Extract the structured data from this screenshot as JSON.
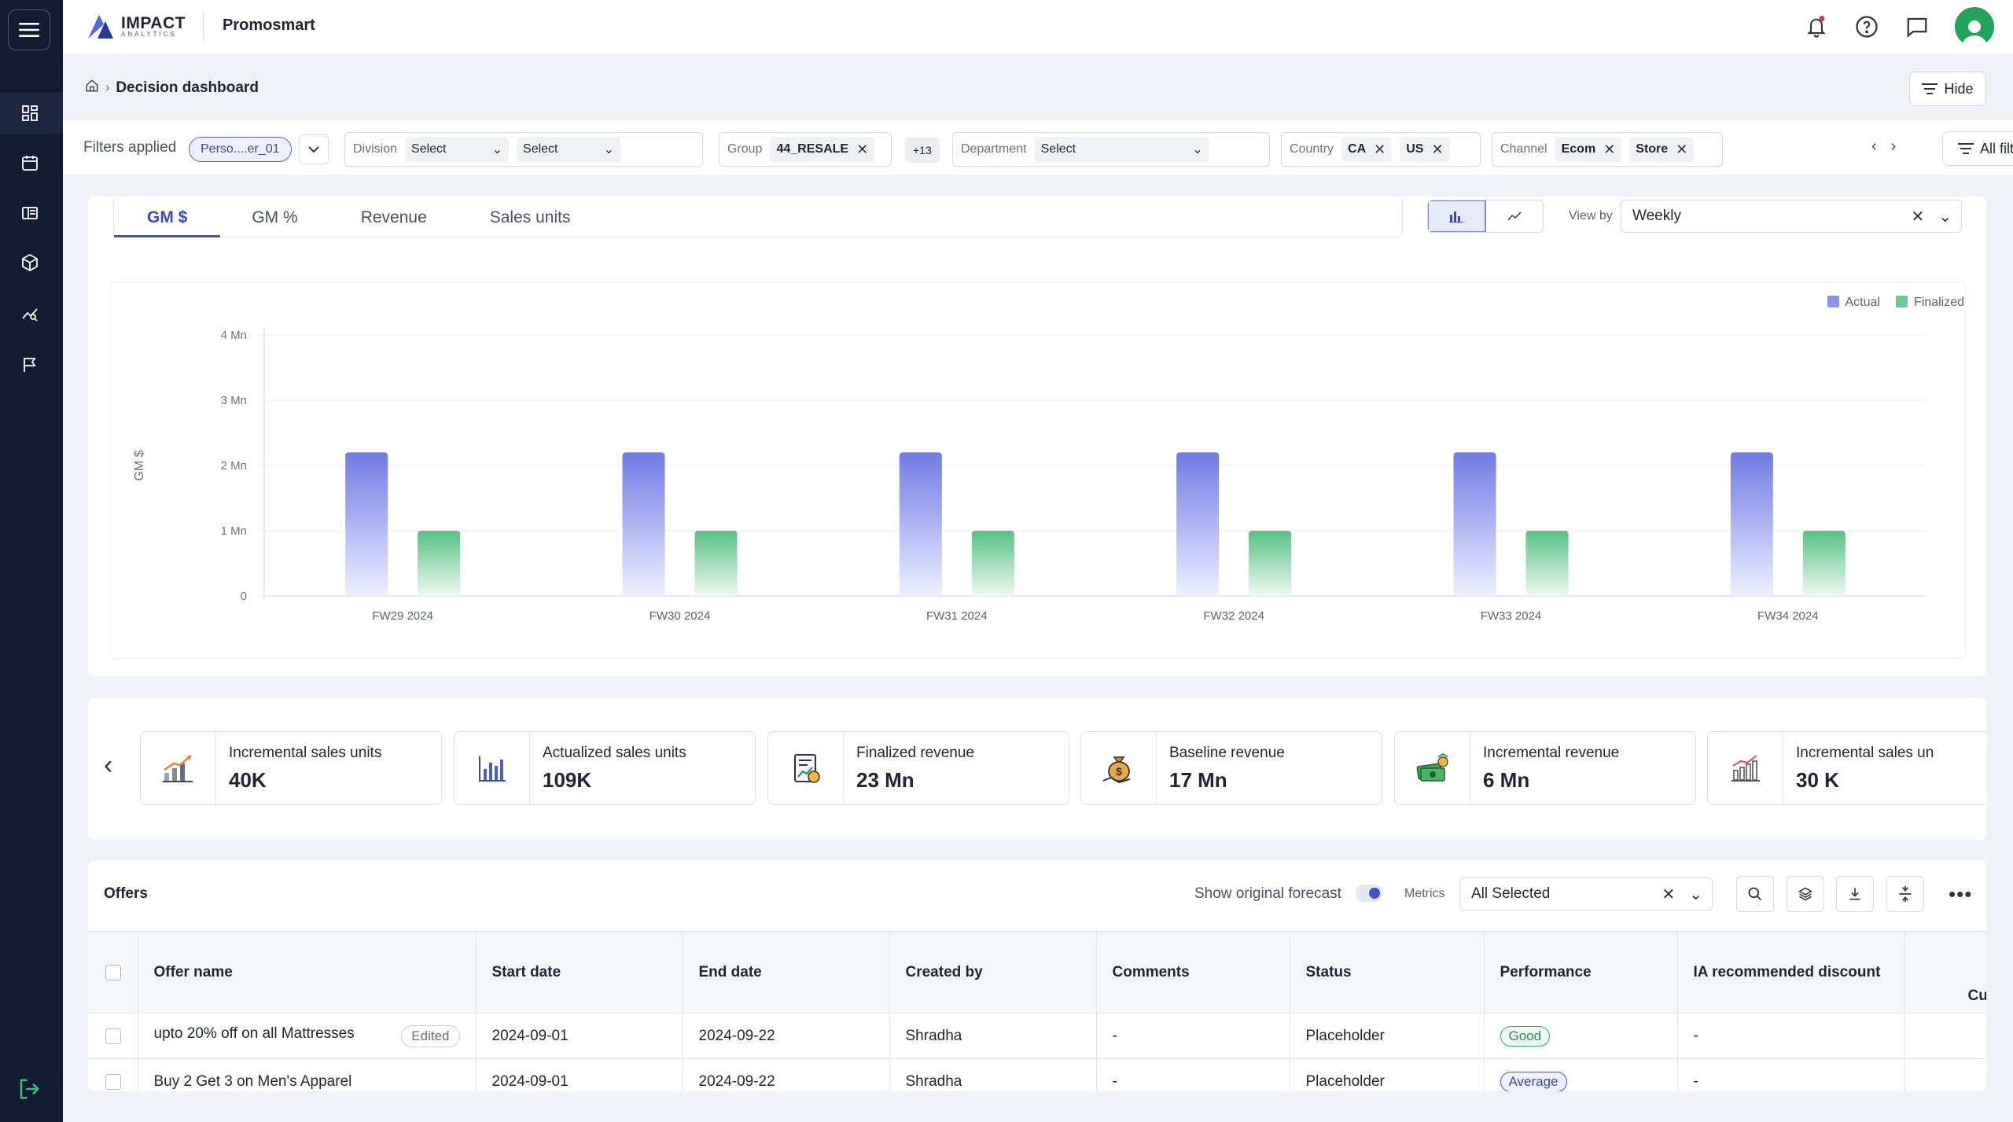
{
  "app": {
    "logo_line1": "IMPACT",
    "logo_line2": "ANALYTICS",
    "name": "Promosmart"
  },
  "breadcrumb": {
    "current": "Decision dashboard",
    "hide_label": "Hide"
  },
  "filters": {
    "label": "Filters applied",
    "saved_filter": "Perso....er_01",
    "division": {
      "label": "Division",
      "select1": "Select",
      "select2": "Select"
    },
    "group": {
      "label": "Group",
      "chip": "44_RESALE"
    },
    "more_count": "+13",
    "department": {
      "label": "Department",
      "select": "Select"
    },
    "country": {
      "label": "Country",
      "chips": [
        "CA",
        "US"
      ]
    },
    "channel": {
      "label": "Channel",
      "chips": [
        "Ecom",
        "Store"
      ]
    },
    "all_filters_label": "All filters"
  },
  "chart_section": {
    "tabs": [
      "GM $",
      "GM %",
      "Revenue",
      "Sales units"
    ],
    "active_tab": "GM $",
    "view_by_label": "View by",
    "view_by_value": "Weekly"
  },
  "chart_data": {
    "type": "bar",
    "ylabel": "GM $",
    "xlabel": "",
    "categories": [
      "FW29 2024",
      "FW30 2024",
      "FW31 2024",
      "FW32 2024",
      "FW33 2024",
      "FW34 2024"
    ],
    "series": [
      {
        "name": "Actual",
        "color": "#7b86e8",
        "values": [
          2.2,
          2.2,
          2.2,
          2.2,
          2.2,
          2.2
        ]
      },
      {
        "name": "Finalized",
        "color": "#5fc48a",
        "values": [
          1.0,
          1.0,
          1.0,
          1.0,
          1.0,
          1.0
        ]
      }
    ],
    "ylim": [
      0,
      4
    ],
    "yticks": [
      {
        "value": 0,
        "label": "0"
      },
      {
        "value": 1,
        "label": "1 Mn"
      },
      {
        "value": 2,
        "label": "2 Mn"
      },
      {
        "value": 3,
        "label": "3 Mn"
      },
      {
        "value": 4,
        "label": "4 Mn"
      }
    ],
    "grid": true,
    "legend_position": "top-right"
  },
  "kpis": [
    {
      "title": "Incremental sales units",
      "value": "40K",
      "icon": "chart-growth-icon"
    },
    {
      "title": "Actualized sales units",
      "value": "109K",
      "icon": "bar-chart-icon"
    },
    {
      "title": "Finalized revenue",
      "value": "23 Mn",
      "icon": "revenue-report-icon"
    },
    {
      "title": "Baseline revenue",
      "value": "17 Mn",
      "icon": "money-bag-icon"
    },
    {
      "title": "Incremental revenue",
      "value": "6 Mn",
      "icon": "cash-stack-icon"
    },
    {
      "title": "Incremental sales un",
      "value": "30 K",
      "icon": "sales-trend-icon"
    }
  ],
  "offers": {
    "title": "Offers",
    "show_original_forecast": "Show original forecast",
    "metrics_label": "Metrics",
    "metrics_value": "All Selected",
    "columns": [
      "Offer name",
      "Start date",
      "End date",
      "Created by",
      "Comments",
      "Status",
      "Performance",
      "IA recommended discount",
      "Cu"
    ],
    "rows": [
      {
        "name": "upto 20% off on all Mattresses",
        "tag": "Edited",
        "start": "2024-09-01",
        "end": "2024-09-22",
        "created_by": "Shradha",
        "comments": "-",
        "status": "Placeholder",
        "performance": "Good",
        "ia_discount": "-"
      },
      {
        "name": "Buy 2 Get 3 on Men's Apparel",
        "tag": "",
        "start": "2024-09-01",
        "end": "2024-09-22",
        "created_by": "Shradha",
        "comments": "-",
        "status": "Placeholder",
        "performance": "Average",
        "ia_discount": "-"
      }
    ]
  }
}
